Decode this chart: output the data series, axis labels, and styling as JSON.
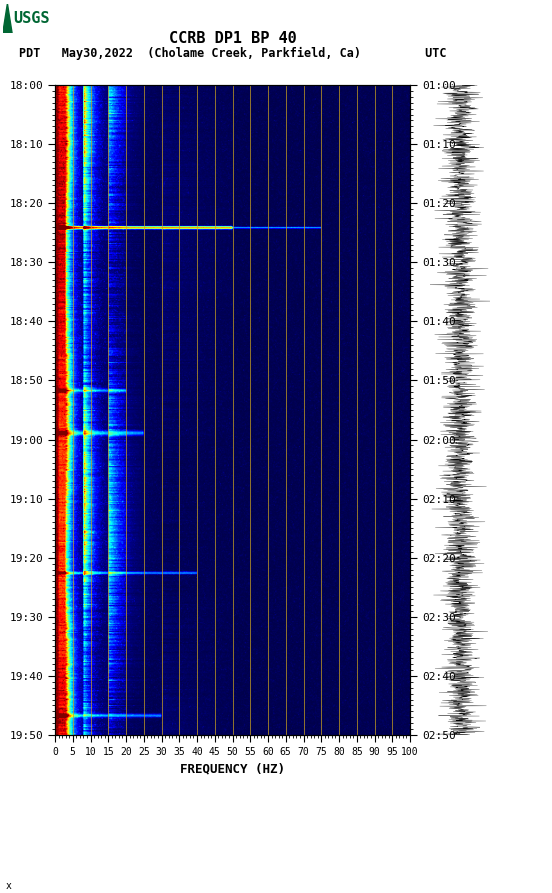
{
  "title_line1": "CCRB DP1 BP 40",
  "title_line2": "PDT   May30,2022  (Cholame Creek, Parkfield, Ca)         UTC",
  "xlabel": "FREQUENCY (HZ)",
  "freq_min": 0,
  "freq_max": 100,
  "freq_ticks": [
    0,
    5,
    10,
    15,
    20,
    25,
    30,
    35,
    40,
    45,
    50,
    55,
    60,
    65,
    70,
    75,
    80,
    85,
    90,
    95,
    100
  ],
  "time_start_pdt": "18:00",
  "time_end_pdt": "19:50",
  "time_start_utc": "01:00",
  "time_end_utc": "02:50",
  "pdt_ticks": [
    "18:00",
    "18:10",
    "18:20",
    "18:30",
    "18:40",
    "18:50",
    "19:00",
    "19:10",
    "19:20",
    "19:30",
    "19:40",
    "19:50"
  ],
  "utc_ticks": [
    "01:00",
    "01:10",
    "01:20",
    "01:30",
    "01:40",
    "01:50",
    "02:00",
    "02:10",
    "02:20",
    "02:30",
    "02:40",
    "02:50"
  ],
  "n_time": 720,
  "n_freq": 400,
  "background_color": "#ffffff",
  "usgs_green": "#006633",
  "vert_line_color": "#c8a020",
  "vert_line_positions": [
    5,
    10,
    15,
    20,
    25,
    30,
    35,
    40,
    45,
    50,
    55,
    60,
    65,
    70,
    75,
    80,
    85,
    90,
    95
  ],
  "seismogram_color": "#000000",
  "vmin": 0,
  "vmax": 10
}
